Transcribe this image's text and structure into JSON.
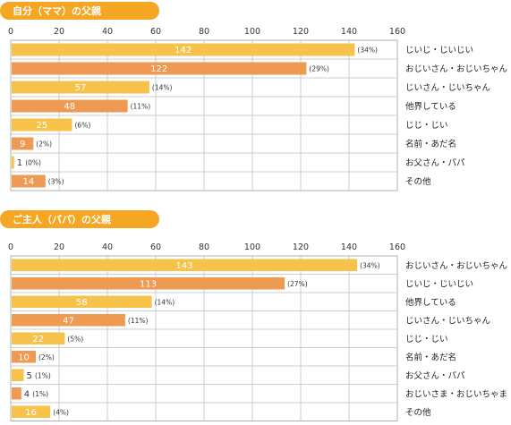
{
  "colors": {
    "header_pill": "#f5a623",
    "bar_yellow": "#f7c24a",
    "bar_orange": "#ee9a52",
    "grid": "#cccccc",
    "frame": "#b0b0b0"
  },
  "chart_data": [
    {
      "type": "bar",
      "orientation": "horizontal",
      "title": "自分（ママ）の父親",
      "xlim": [
        0,
        160
      ],
      "ticks": [
        "0",
        "20",
        "40",
        "60",
        "80",
        "100",
        "120",
        "140",
        "160"
      ],
      "categories": [
        "じいじ・じいじい",
        "おじいさん・おじいちゃん",
        "じいさん・じいちゃん",
        "他界している",
        "じじ・じい",
        "名前・あだ名",
        "お父さん・パパ",
        "その他"
      ],
      "values": [
        142,
        122,
        57,
        48,
        25,
        9,
        1,
        14
      ],
      "value_labels": [
        "142",
        "122",
        "57",
        "48",
        "25",
        "9",
        "1",
        "14"
      ],
      "percent_labels": [
        "(34%)",
        "(29%)",
        "(14%)",
        "(11%)",
        "(6%)",
        "(2%)",
        "(0%)",
        "(3%)"
      ],
      "bar_colors": [
        "yellow",
        "orange",
        "yellow",
        "orange",
        "yellow",
        "orange",
        "yellow",
        "orange"
      ],
      "grid": true
    },
    {
      "type": "bar",
      "orientation": "horizontal",
      "title": "ご主人（パパ）の父親",
      "xlim": [
        0,
        160
      ],
      "ticks": [
        "0",
        "20",
        "40",
        "60",
        "80",
        "100",
        "120",
        "140",
        "160"
      ],
      "categories": [
        "おじいさん・おじいちゃん",
        "じいじ・じいじい",
        "他界している",
        "じいさん・じいちゃん",
        "じじ・じい",
        "名前・あだ名",
        "お父さん・パパ",
        "おじいさま・おじいちゃま",
        "その他"
      ],
      "values": [
        143,
        113,
        58,
        47,
        22,
        10,
        5,
        4,
        16
      ],
      "value_labels": [
        "143",
        "113",
        "58",
        "47",
        "22",
        "10",
        "5",
        "4",
        "16"
      ],
      "percent_labels": [
        "(34%)",
        "(27%)",
        "(14%)",
        "(11%)",
        "(5%)",
        "(2%)",
        "(1%)",
        "(1%)",
        "(4%)"
      ],
      "bar_colors": [
        "yellow",
        "orange",
        "yellow",
        "orange",
        "yellow",
        "orange",
        "yellow",
        "orange",
        "yellow"
      ],
      "grid": true
    }
  ]
}
